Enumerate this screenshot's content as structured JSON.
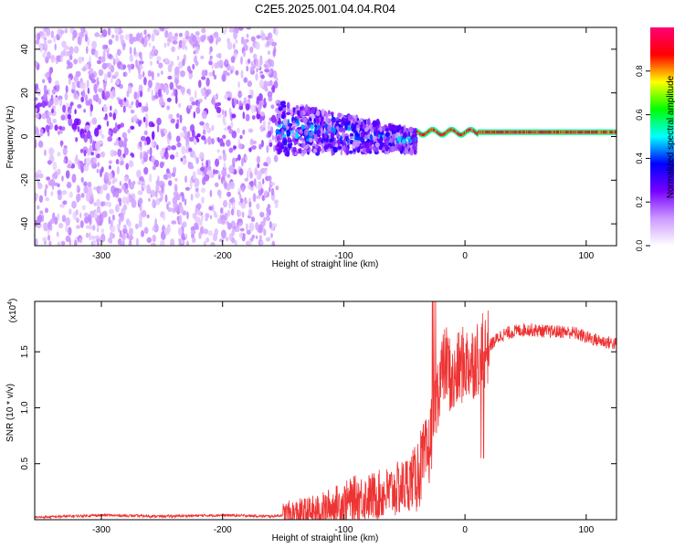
{
  "title": "C2E5.2025.001.04.04.R04",
  "colorbar": {
    "label": "Normalized spectral amplitude",
    "range": [
      0,
      1
    ],
    "ticks": [
      "0.0",
      "0.2",
      "0.4",
      "0.6",
      "0.8"
    ],
    "colors": [
      "#ffffff",
      "#cc99ff",
      "#7700ff",
      "#0000ff",
      "#00ffff",
      "#00ff00",
      "#ffff00",
      "#ff0000",
      "#ff0077"
    ]
  },
  "chart_data": [
    {
      "type": "heatmap",
      "xlabel": "Height of straight line (km)",
      "ylabel": "Frequency (Hz)",
      "xlim": [
        -355,
        125
      ],
      "ylim": [
        -50,
        50
      ],
      "x_ticks": [
        "-300",
        "-200",
        "-100",
        "0",
        "100"
      ],
      "y_ticks": [
        "40",
        "20",
        "0",
        "-20",
        "-40"
      ],
      "regions": [
        {
          "x": [
            -355,
            -155
          ],
          "y": [
            -50,
            50
          ],
          "amplitude": [
            0.05,
            0.25
          ],
          "pattern": "scattered"
        },
        {
          "x": [
            -155,
            -40
          ],
          "y": [
            -15,
            15
          ],
          "amplitude": [
            0.1,
            0.35
          ],
          "pattern": "band narrowing"
        },
        {
          "x": [
            -40,
            125
          ],
          "y": [
            0,
            4
          ],
          "amplitude": [
            0.8,
            0.95
          ],
          "pattern": "narrow line"
        }
      ]
    },
    {
      "type": "line",
      "xlabel": "Height of straight line (km)",
      "ylabel": "SNR (10 * v/v)",
      "y_multiplier": "(x10",
      "y_multiplier_exp": "4",
      "y_multiplier_close": ")",
      "xlim": [
        -355,
        125
      ],
      "ylim": [
        0,
        1.95
      ],
      "x_ticks": [
        "-300",
        "-200",
        "-100",
        "0",
        "100"
      ],
      "y_ticks": [
        "0.5",
        "1.0",
        "1.5"
      ],
      "series": [
        {
          "color": "#ee3333",
          "x": [
            -355,
            -300,
            -250,
            -200,
            -160,
            -140,
            -120,
            -110,
            -100,
            -90,
            -80,
            -70,
            -60,
            -50,
            -40,
            -30,
            -25,
            -20,
            -15,
            -10,
            -5,
            0,
            5,
            10,
            15,
            20,
            30,
            40,
            50,
            60,
            70,
            80,
            90,
            100,
            110,
            120,
            125
          ],
          "y": [
            0.02,
            0.04,
            0.03,
            0.04,
            0.03,
            0.05,
            0.07,
            0.12,
            0.15,
            0.2,
            0.2,
            0.22,
            0.25,
            0.3,
            0.4,
            0.6,
            1.0,
            1.3,
            1.4,
            1.2,
            1.35,
            1.4,
            1.4,
            1.45,
            1.5,
            1.55,
            1.65,
            1.68,
            1.7,
            1.69,
            1.68,
            1.68,
            1.67,
            1.63,
            1.6,
            1.58,
            1.57
          ]
        }
      ]
    }
  ]
}
